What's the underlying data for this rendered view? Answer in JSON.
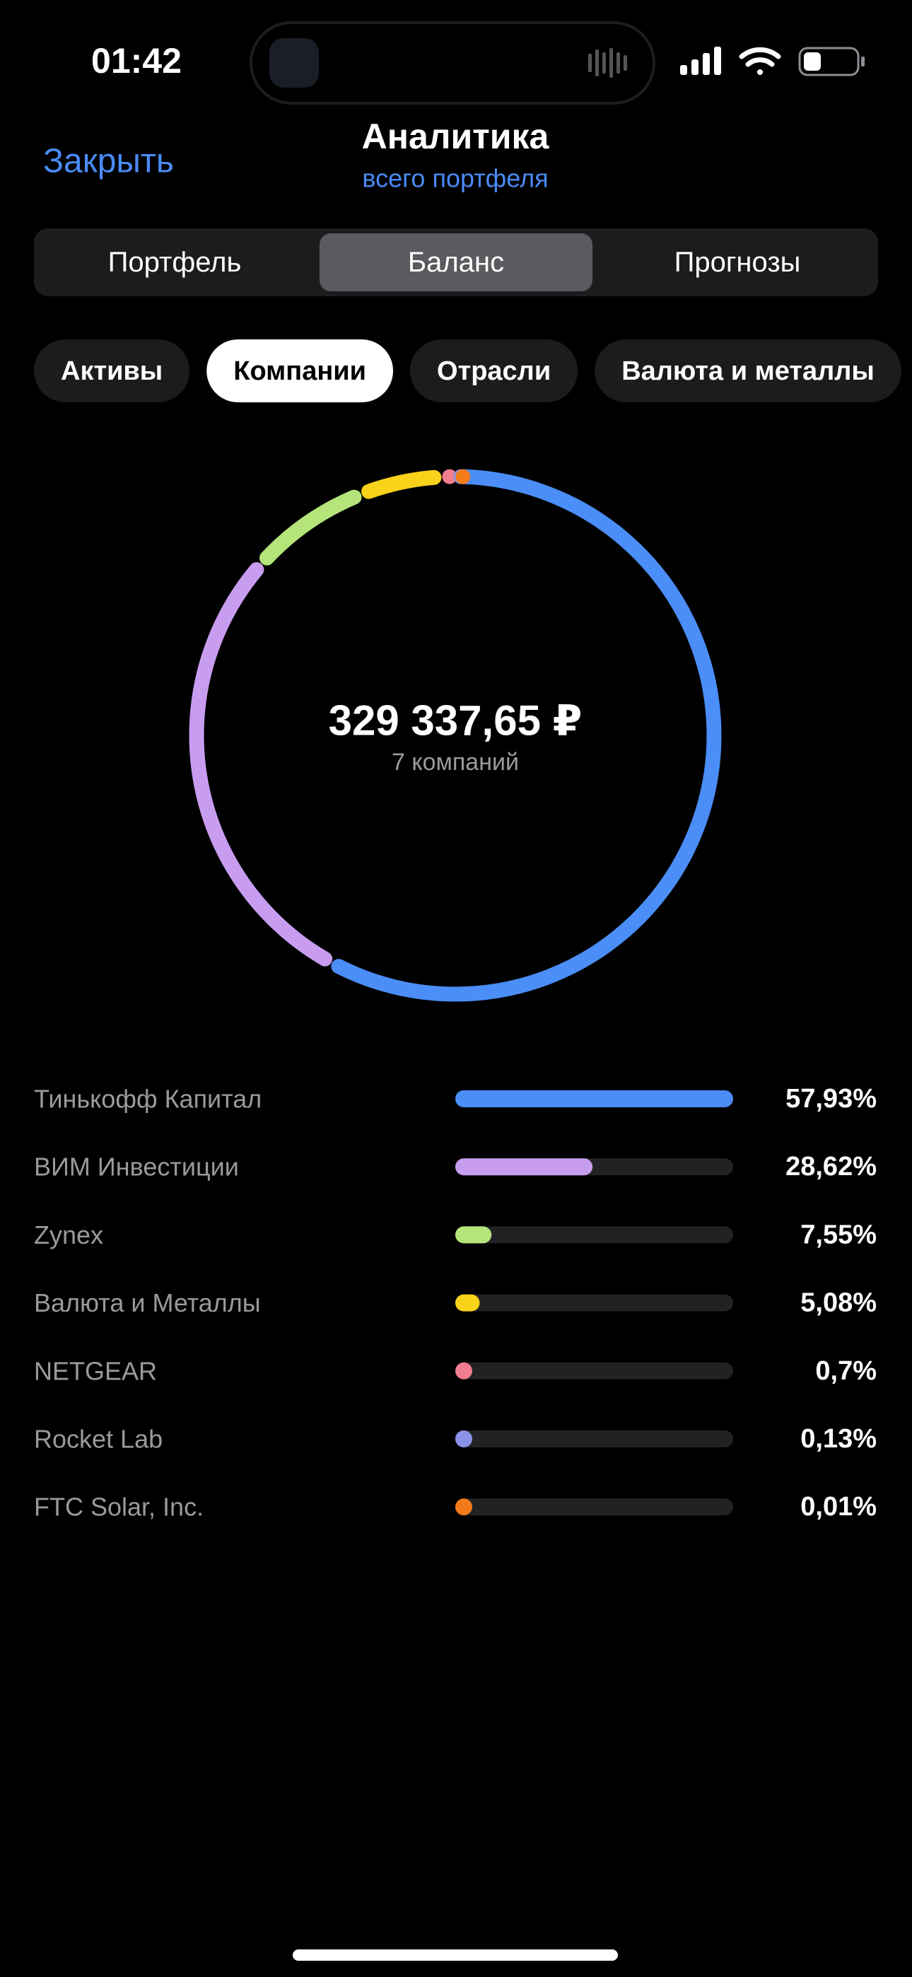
{
  "status_bar": {
    "time": "01:42"
  },
  "header": {
    "close": "Закрыть",
    "title": "Аналитика",
    "subtitle": "всего портфеля"
  },
  "tabs": {
    "items": [
      "Портфель",
      "Баланс",
      "Прогнозы"
    ],
    "selected": 1
  },
  "chips": {
    "items": [
      "Активы",
      "Компании",
      "Отрасли",
      "Валюта и металлы"
    ],
    "selected": 1
  },
  "chart_data": {
    "type": "donut",
    "center_value": "329 337,65 ₽",
    "center_caption": "7 компаний",
    "categories": [
      "Тинькофф Капитал",
      "ВИМ Инвестиции",
      "Zynex",
      "Валюта и Металлы",
      "NETGEAR",
      "Rocket Lab",
      "FTC Solar, Inc."
    ],
    "values": [
      57.93,
      28.62,
      7.55,
      5.08,
      0.7,
      0.13,
      0.01
    ],
    "value_labels": [
      "57,93%",
      "28,62%",
      "7,55%",
      "5,08%",
      "0,7%",
      "0,13%",
      "0,01%"
    ],
    "colors": [
      "#4b8ef7",
      "#c89df0",
      "#b5e47a",
      "#f9d21a",
      "#f27d8f",
      "#8b93e8",
      "#f47b1a"
    ]
  }
}
